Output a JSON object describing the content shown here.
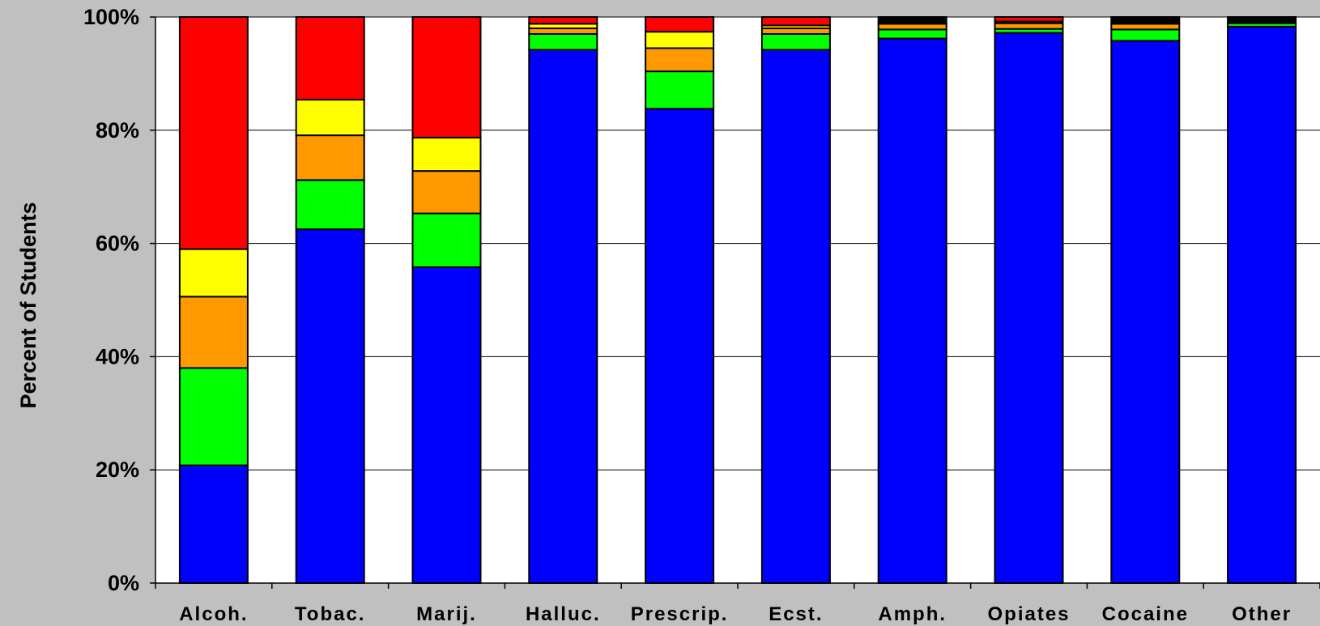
{
  "chart_data": {
    "type": "bar",
    "stacked": true,
    "title": "",
    "xlabel": "",
    "ylabel": "Percent of Students",
    "ylim": [
      0,
      100
    ],
    "yticks": [
      "0%",
      "20%",
      "40%",
      "60%",
      "80%",
      "100%"
    ],
    "grid": true,
    "legend": "none",
    "colors": {
      "plot_background": "#ffffff",
      "figure_background": "#c0c0c0",
      "series": [
        "#0000ff",
        "#00ff00",
        "#ff9900",
        "#ffff00",
        "#ff0000",
        "#000000"
      ]
    },
    "categories": [
      "Alcoh.",
      "Tobac.",
      "Marij.",
      "Halluc.",
      "Prescrip.",
      "Ecst.",
      "Amph.",
      "Opiates",
      "Cocaine",
      "Other"
    ],
    "series": [
      {
        "values": [
          20.8,
          62.5,
          55.8,
          94.2,
          83.8,
          94.2,
          96.2,
          97.2,
          95.8,
          98.3
        ]
      },
      {
        "values": [
          17.2,
          8.7,
          9.5,
          2.8,
          6.6,
          2.8,
          1.6,
          0.7,
          2.0,
          0.6
        ]
      },
      {
        "values": [
          12.6,
          7.9,
          7.5,
          1.0,
          4.1,
          1.0,
          1.0,
          1.0,
          1.0,
          0.0
        ]
      },
      {
        "values": [
          8.4,
          6.3,
          5.9,
          0.8,
          2.9,
          0.5,
          0.0,
          0.3,
          0.0,
          0.0
        ]
      },
      {
        "values": [
          41.0,
          14.6,
          21.3,
          1.2,
          2.6,
          1.5,
          0.0,
          0.8,
          0.0,
          0.0
        ]
      },
      {
        "values": [
          0.0,
          0.0,
          0.0,
          0.0,
          0.0,
          0.0,
          1.2,
          0.0,
          1.2,
          1.1
        ]
      }
    ]
  }
}
